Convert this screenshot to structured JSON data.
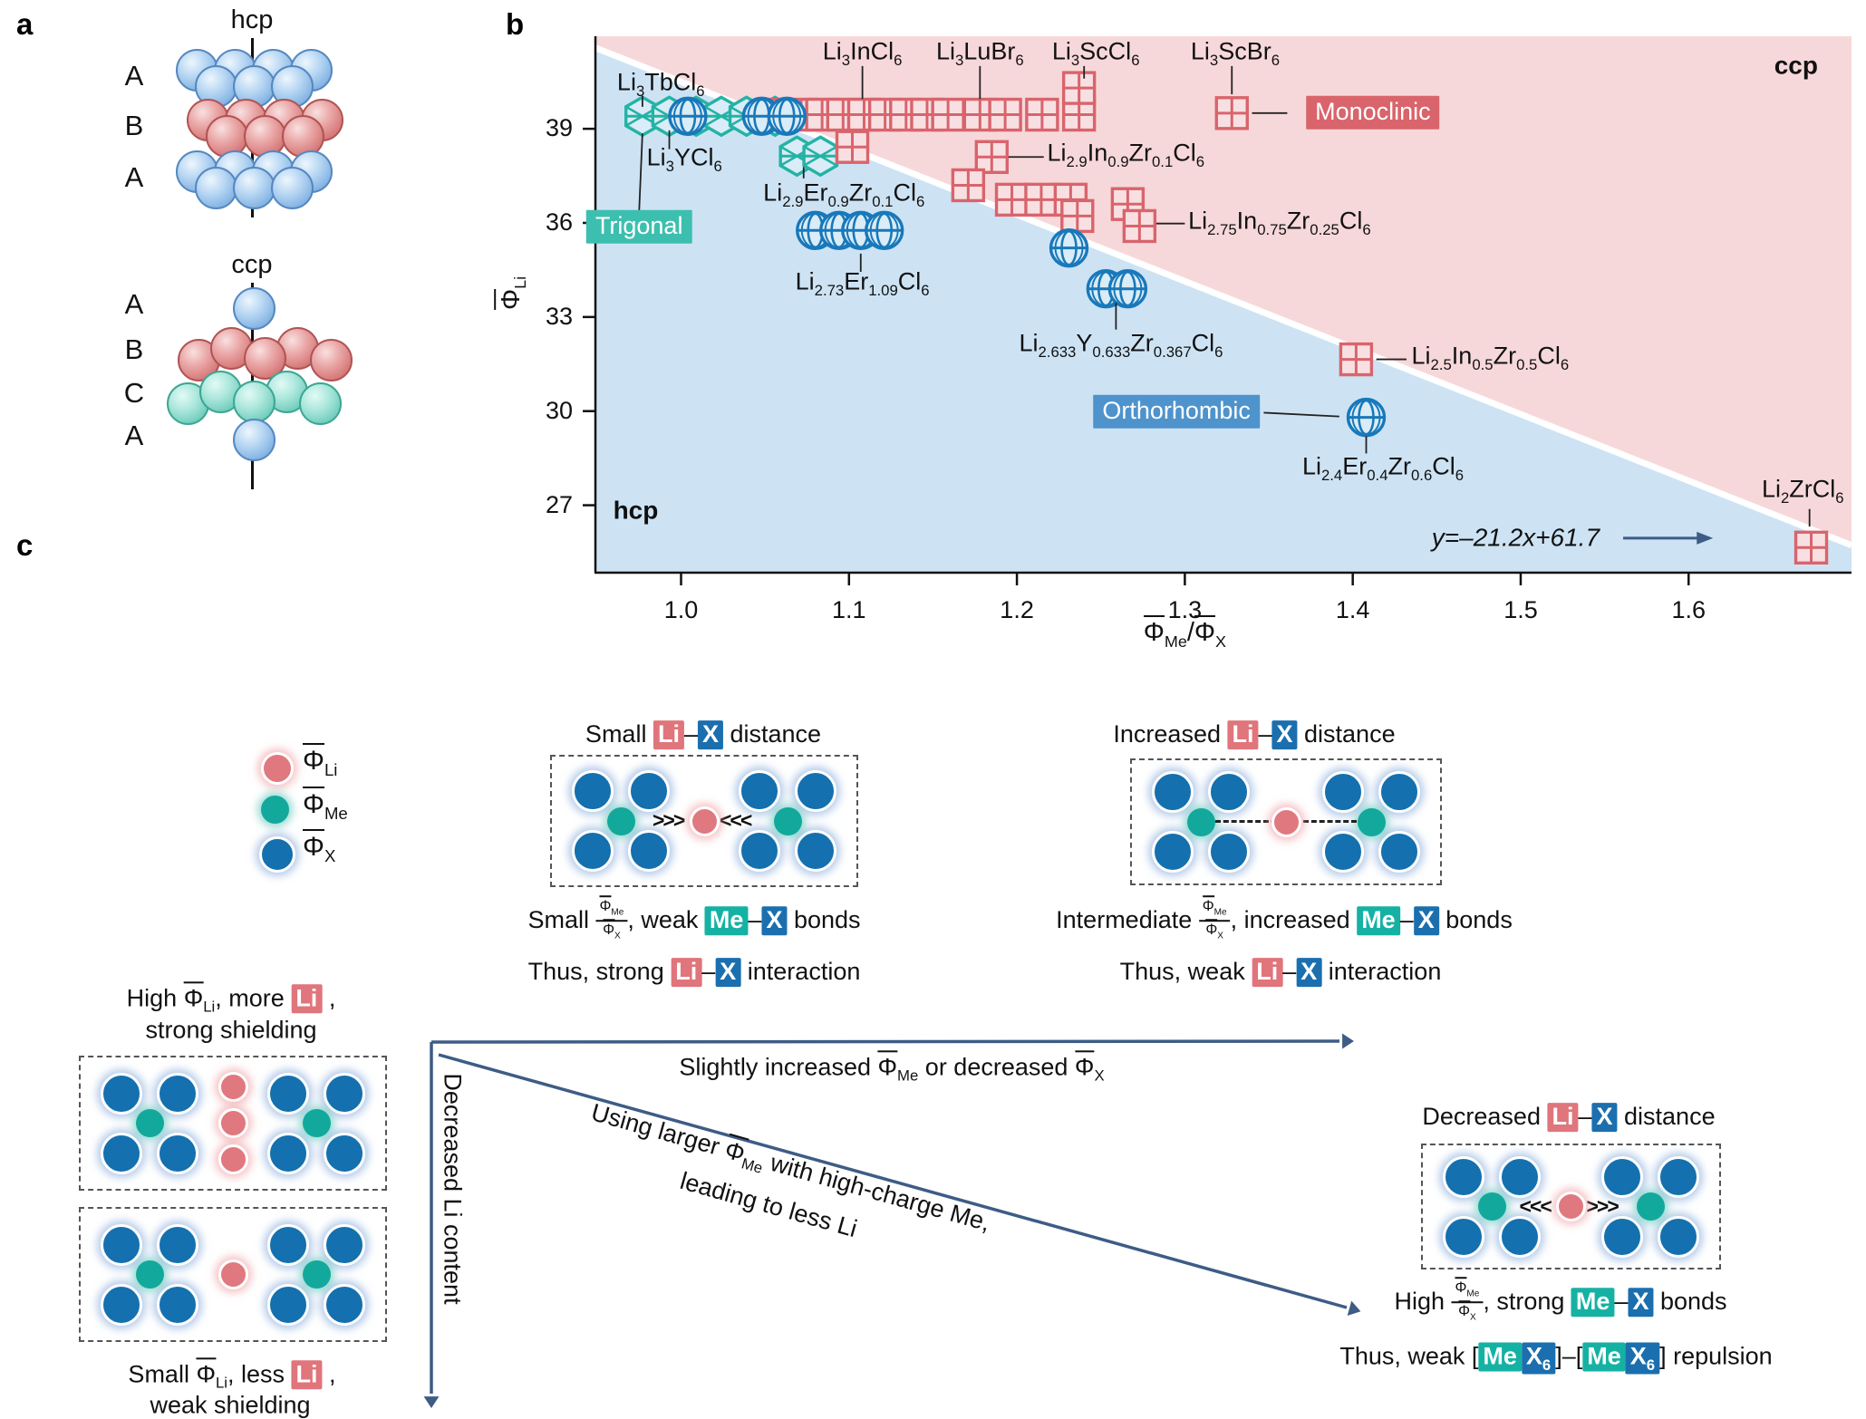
{
  "colors": {
    "region_ccp": "#f7d8da",
    "region_hcp": "#cde3f4",
    "monoclinic": "#d9646c",
    "trigonal": "#23b3a4",
    "orthorhombic": "#1878ba",
    "box_monoclinic": "#d9646c",
    "box_trigonal": "#3dbfb0",
    "box_orthorhombic": "#4e93cc",
    "chip_li": "#e0757c",
    "chip_me": "#15b2a4",
    "chip_x": "#1b6fae",
    "arrow": "#3d5c86"
  },
  "panel_a": {
    "label": "a",
    "hcp": {
      "title": "hcp",
      "layers": [
        {
          "name": "A",
          "color": "blue",
          "kind": "row7"
        },
        {
          "name": "B",
          "color": "red",
          "kind": "row7"
        },
        {
          "name": "A",
          "color": "blue",
          "kind": "row7"
        }
      ]
    },
    "ccp": {
      "title": "ccp",
      "layers": [
        {
          "name": "A",
          "color": "blue",
          "kind": "single"
        },
        {
          "name": "B",
          "color": "red",
          "kind": "row5"
        },
        {
          "name": "C",
          "color": "teal",
          "kind": "row5"
        },
        {
          "name": "A",
          "color": "blue",
          "kind": "single"
        }
      ]
    }
  },
  "panel_b": {
    "label": "b"
  },
  "chart_data": {
    "type": "scatter",
    "xlabel": "Φ_Me/Φ_X",
    "ylabel": "Φ_Li",
    "xlim": [
      0.949,
      1.697
    ],
    "ylim": [
      24.85,
      41.95
    ],
    "x_ticks": [
      1.0,
      1.1,
      1.2,
      1.3,
      1.4,
      1.5,
      1.6
    ],
    "y_ticks": [
      27,
      30,
      33,
      36,
      39
    ],
    "grid": false,
    "regions": {
      "upper": {
        "label": "ccp"
      },
      "lower": {
        "label": "hcp"
      }
    },
    "boundary": {
      "label": "y=–21.2x+61.7",
      "slope": -21.2,
      "intercept": 61.7
    },
    "series": [
      {
        "name": "Monoclinic",
        "marker": "grid-square",
        "points": [
          [
            1.059,
            39.45
          ],
          [
            1.0715,
            39.45
          ],
          [
            1.084,
            39.45
          ],
          [
            1.0965,
            39.45
          ],
          [
            1.109,
            39.45
          ],
          [
            1.1215,
            39.45
          ],
          [
            1.134,
            39.45
          ],
          [
            1.1465,
            39.45
          ],
          [
            1.159,
            39.45
          ],
          [
            1.178,
            39.45
          ],
          [
            1.193,
            39.45
          ],
          [
            1.215,
            39.45
          ],
          [
            1.237,
            39.45
          ],
          [
            1.237,
            40.3
          ],
          [
            1.328,
            39.5
          ],
          [
            1.102,
            38.42
          ],
          [
            1.185,
            38.1
          ],
          [
            1.171,
            37.2
          ],
          [
            1.197,
            36.74
          ],
          [
            1.2145,
            36.74
          ],
          [
            1.232,
            36.74
          ],
          [
            1.236,
            36.22
          ],
          [
            1.266,
            36.6
          ],
          [
            1.273,
            35.9
          ],
          [
            1.402,
            31.65
          ],
          [
            1.673,
            25.65
          ]
        ]
      },
      {
        "name": "Trigonal",
        "marker": "crossed-hexagon",
        "points": [
          [
            0.977,
            39.4
          ],
          [
            0.993,
            39.4
          ],
          [
            1.009,
            39.4
          ],
          [
            1.024,
            39.4
          ],
          [
            1.039,
            39.4
          ],
          [
            1.056,
            39.4
          ],
          [
            1.069,
            38.13
          ],
          [
            1.083,
            38.13
          ]
        ]
      },
      {
        "name": "Orthorhombic",
        "marker": "globe-circle",
        "points": [
          [
            1.004,
            39.4
          ],
          [
            1.048,
            39.4
          ],
          [
            1.063,
            39.4
          ],
          [
            1.08,
            35.76
          ],
          [
            1.094,
            35.76
          ],
          [
            1.107,
            35.76
          ],
          [
            1.121,
            35.76
          ],
          [
            1.231,
            35.2
          ],
          [
            1.253,
            33.9
          ],
          [
            1.266,
            33.9
          ],
          [
            1.408,
            29.8
          ]
        ]
      }
    ],
    "point_labels": [
      {
        "formula": "Li3TbCl6",
        "x": 0.988,
        "y": 40.35,
        "leader": [
          [
            0.977,
            40.05
          ],
          [
            0.977,
            39.7
          ]
        ]
      },
      {
        "formula": "Li3YCl6",
        "x": 1.002,
        "y": 37.95,
        "leader": [
          [
            0.993,
            38.35
          ],
          [
            0.993,
            38.95
          ]
        ]
      },
      {
        "formula": "Li3InCl6",
        "x": 1.108,
        "y": 41.35,
        "leader": [
          [
            1.108,
            41.0
          ],
          [
            1.108,
            39.95
          ]
        ]
      },
      {
        "formula": "Li3LuBr6",
        "x": 1.178,
        "y": 41.35,
        "leader": [
          [
            1.178,
            41.0
          ],
          [
            1.178,
            39.95
          ]
        ]
      },
      {
        "formula": "Li3ScCl6",
        "x": 1.247,
        "y": 41.35,
        "leader": [
          [
            1.24,
            41.0
          ],
          [
            1.24,
            40.6
          ]
        ]
      },
      {
        "formula": "Li3ScBr6",
        "x": 1.33,
        "y": 41.35,
        "leader": [
          [
            1.328,
            41.0
          ],
          [
            1.328,
            40.1
          ]
        ]
      },
      {
        "formula": "Li2.9In0.9Zr0.1Cl6",
        "x": 1.218,
        "y": 38.1,
        "align": "left",
        "leader": [
          [
            1.195,
            38.1
          ],
          [
            1.216,
            38.1
          ]
        ]
      },
      {
        "formula": "Li2.9Er0.9Zr0.1Cl6",
        "x": 1.097,
        "y": 36.85,
        "leader": [
          [
            1.073,
            37.78
          ],
          [
            1.073,
            37.42
          ]
        ]
      },
      {
        "formula": "Li2.73Er1.09Cl6",
        "x": 1.108,
        "y": 34.0,
        "leader": [
          [
            1.107,
            35.02
          ],
          [
            1.107,
            34.44
          ]
        ]
      },
      {
        "formula": "Li2.633Y0.633Zr0.367Cl6",
        "x": 1.262,
        "y": 32.05,
        "leader": [
          [
            1.259,
            33.45
          ],
          [
            1.259,
            32.6
          ]
        ]
      },
      {
        "formula": "Li2.75In0.75Zr0.25Cl6",
        "x": 1.302,
        "y": 35.95,
        "align": "left",
        "leader": [
          [
            1.283,
            35.98
          ],
          [
            1.3,
            35.98
          ]
        ]
      },
      {
        "formula": "Li2.5In0.5Zr0.5Cl6",
        "x": 1.435,
        "y": 31.65,
        "align": "left",
        "leader": [
          [
            1.414,
            31.65
          ],
          [
            1.432,
            31.65
          ]
        ]
      },
      {
        "formula": "Li2.4Er0.4Zr0.6Cl6",
        "x": 1.418,
        "y": 28.1,
        "leader": [
          [
            1.408,
            29.2
          ],
          [
            1.408,
            28.65
          ]
        ]
      },
      {
        "formula": "Li2ZrCl6",
        "x": 1.668,
        "y": 27.4,
        "leader": [
          [
            1.672,
            26.88
          ],
          [
            1.672,
            26.32
          ]
        ]
      }
    ],
    "structure_legends": [
      {
        "text": "Trigonal",
        "key": "box_trigonal",
        "x": 0.975,
        "y": 35.85,
        "leader": [
          [
            0.975,
            36.32
          ],
          [
            0.977,
            38.85
          ]
        ]
      },
      {
        "text": "Monoclinic",
        "key": "box_monoclinic",
        "x": 1.412,
        "y": 39.5,
        "leader": [
          [
            1.34,
            39.5
          ],
          [
            1.361,
            39.5
          ]
        ]
      },
      {
        "text": "Orthorhombic",
        "key": "box_orthorhombic",
        "x": 1.295,
        "y": 29.95,
        "leader": [
          [
            1.347,
            29.95
          ],
          [
            1.392,
            29.83
          ]
        ]
      }
    ],
    "annotations": [
      {
        "text": "hcp",
        "x": 0.973,
        "y": 26.8,
        "style": "bold"
      },
      {
        "text": "ccp",
        "x": 1.664,
        "y": 41.0,
        "style": "bold"
      },
      {
        "text": "y=–21.2x+61.7",
        "x": 1.497,
        "y": 25.95,
        "style": "italic",
        "arrow": [
          [
            1.561,
            25.95
          ],
          [
            1.607,
            25.95
          ]
        ]
      }
    ]
  },
  "panel_c": {
    "label": "c",
    "legend": [
      {
        "c": "li",
        "phi": "Li"
      },
      {
        "c": "me",
        "phi": "Me"
      },
      {
        "c": "x",
        "phi": "X"
      }
    ],
    "blocks": {
      "small": {
        "title": [
          {
            "t": "Small "
          },
          {
            "chip": "Li",
            "c": "li"
          },
          {
            "t": "–"
          },
          {
            "chip": "X",
            "c": "x"
          },
          {
            "t": " distance"
          }
        ],
        "cap1": [
          {
            "t": "Small "
          },
          {
            "frac": [
              "Me",
              "X"
            ]
          },
          {
            "t": ", weak "
          },
          {
            "chip": "Me",
            "c": "me"
          },
          {
            "t": "–"
          },
          {
            "chip": "X",
            "c": "x"
          },
          {
            "t": " bonds"
          }
        ],
        "cap2": [
          {
            "t": "Thus, strong "
          },
          {
            "chip": "Li",
            "c": "li"
          },
          {
            "t": "–"
          },
          {
            "chip": "X",
            "c": "x"
          },
          {
            "t": " interaction"
          }
        ],
        "diagram": "arrows-in"
      },
      "increased": {
        "title": [
          {
            "t": "Increased "
          },
          {
            "chip": "Li",
            "c": "li"
          },
          {
            "t": "–"
          },
          {
            "chip": "X",
            "c": "x"
          },
          {
            "t": " distance"
          }
        ],
        "cap1": [
          {
            "t": "Intermediate "
          },
          {
            "frac": [
              "Me",
              "X"
            ]
          },
          {
            "t": ", increased "
          },
          {
            "chip": "Me",
            "c": "me"
          },
          {
            "t": "–"
          },
          {
            "chip": "X",
            "c": "x"
          },
          {
            "t": " bonds"
          }
        ],
        "cap2": [
          {
            "t": "Thus, weak "
          },
          {
            "chip": "Li",
            "c": "li"
          },
          {
            "t": "–"
          },
          {
            "chip": "X",
            "c": "x"
          },
          {
            "t": " interaction"
          }
        ],
        "diagram": "dashed"
      },
      "decreased": {
        "title": [
          {
            "t": "Decreased "
          },
          {
            "chip": "Li",
            "c": "li"
          },
          {
            "t": "–"
          },
          {
            "chip": "X",
            "c": "x"
          },
          {
            "t": " distance"
          }
        ],
        "cap1": [
          {
            "t": "High "
          },
          {
            "frac": [
              "Me",
              "X"
            ]
          },
          {
            "t": ", strong "
          },
          {
            "chip": "Me",
            "c": "me"
          },
          {
            "t": "–"
          },
          {
            "chip": "X",
            "c": "x"
          },
          {
            "t": " bonds"
          }
        ],
        "cap2": [
          {
            "t": "Thus, weak ["
          },
          {
            "chip": "Me",
            "c": "me"
          },
          {
            "chip": "X",
            "c": "x",
            "sub": "6"
          },
          {
            "t": "]–["
          },
          {
            "chip": "Me",
            "c": "me"
          },
          {
            "chip": "X",
            "c": "x",
            "sub": "6"
          },
          {
            "t": "] repulsion"
          }
        ],
        "diagram": "arrows-out"
      },
      "shield": {
        "title1": [
          {
            "t": "High "
          },
          {
            "phi": "Li"
          },
          {
            "t": ", more "
          },
          {
            "chip": "Li",
            "c": "li"
          },
          {
            "t": " ,"
          }
        ],
        "title2": "strong shielding",
        "bottom1": [
          {
            "t": "Small "
          },
          {
            "phi": "Li"
          },
          {
            "t": ", less "
          },
          {
            "chip": "Li",
            "c": "li"
          },
          {
            "t": " ,"
          }
        ],
        "bottom2": "weak shielding",
        "diagram_top": "li3",
        "diagram_bottom": "li1"
      }
    },
    "flows": {
      "horizontal": [
        {
          "t": "Slightly increased "
        },
        {
          "phi": "Me"
        },
        {
          "t": " or decreased "
        },
        {
          "phi": "X"
        }
      ],
      "vertical": "Decreased Li content",
      "diagonal1": [
        {
          "t": "Using larger "
        },
        {
          "phi": "Me"
        },
        {
          "t": " with high-charge Me,"
        }
      ],
      "diagonal2": "leading to less Li"
    }
  }
}
